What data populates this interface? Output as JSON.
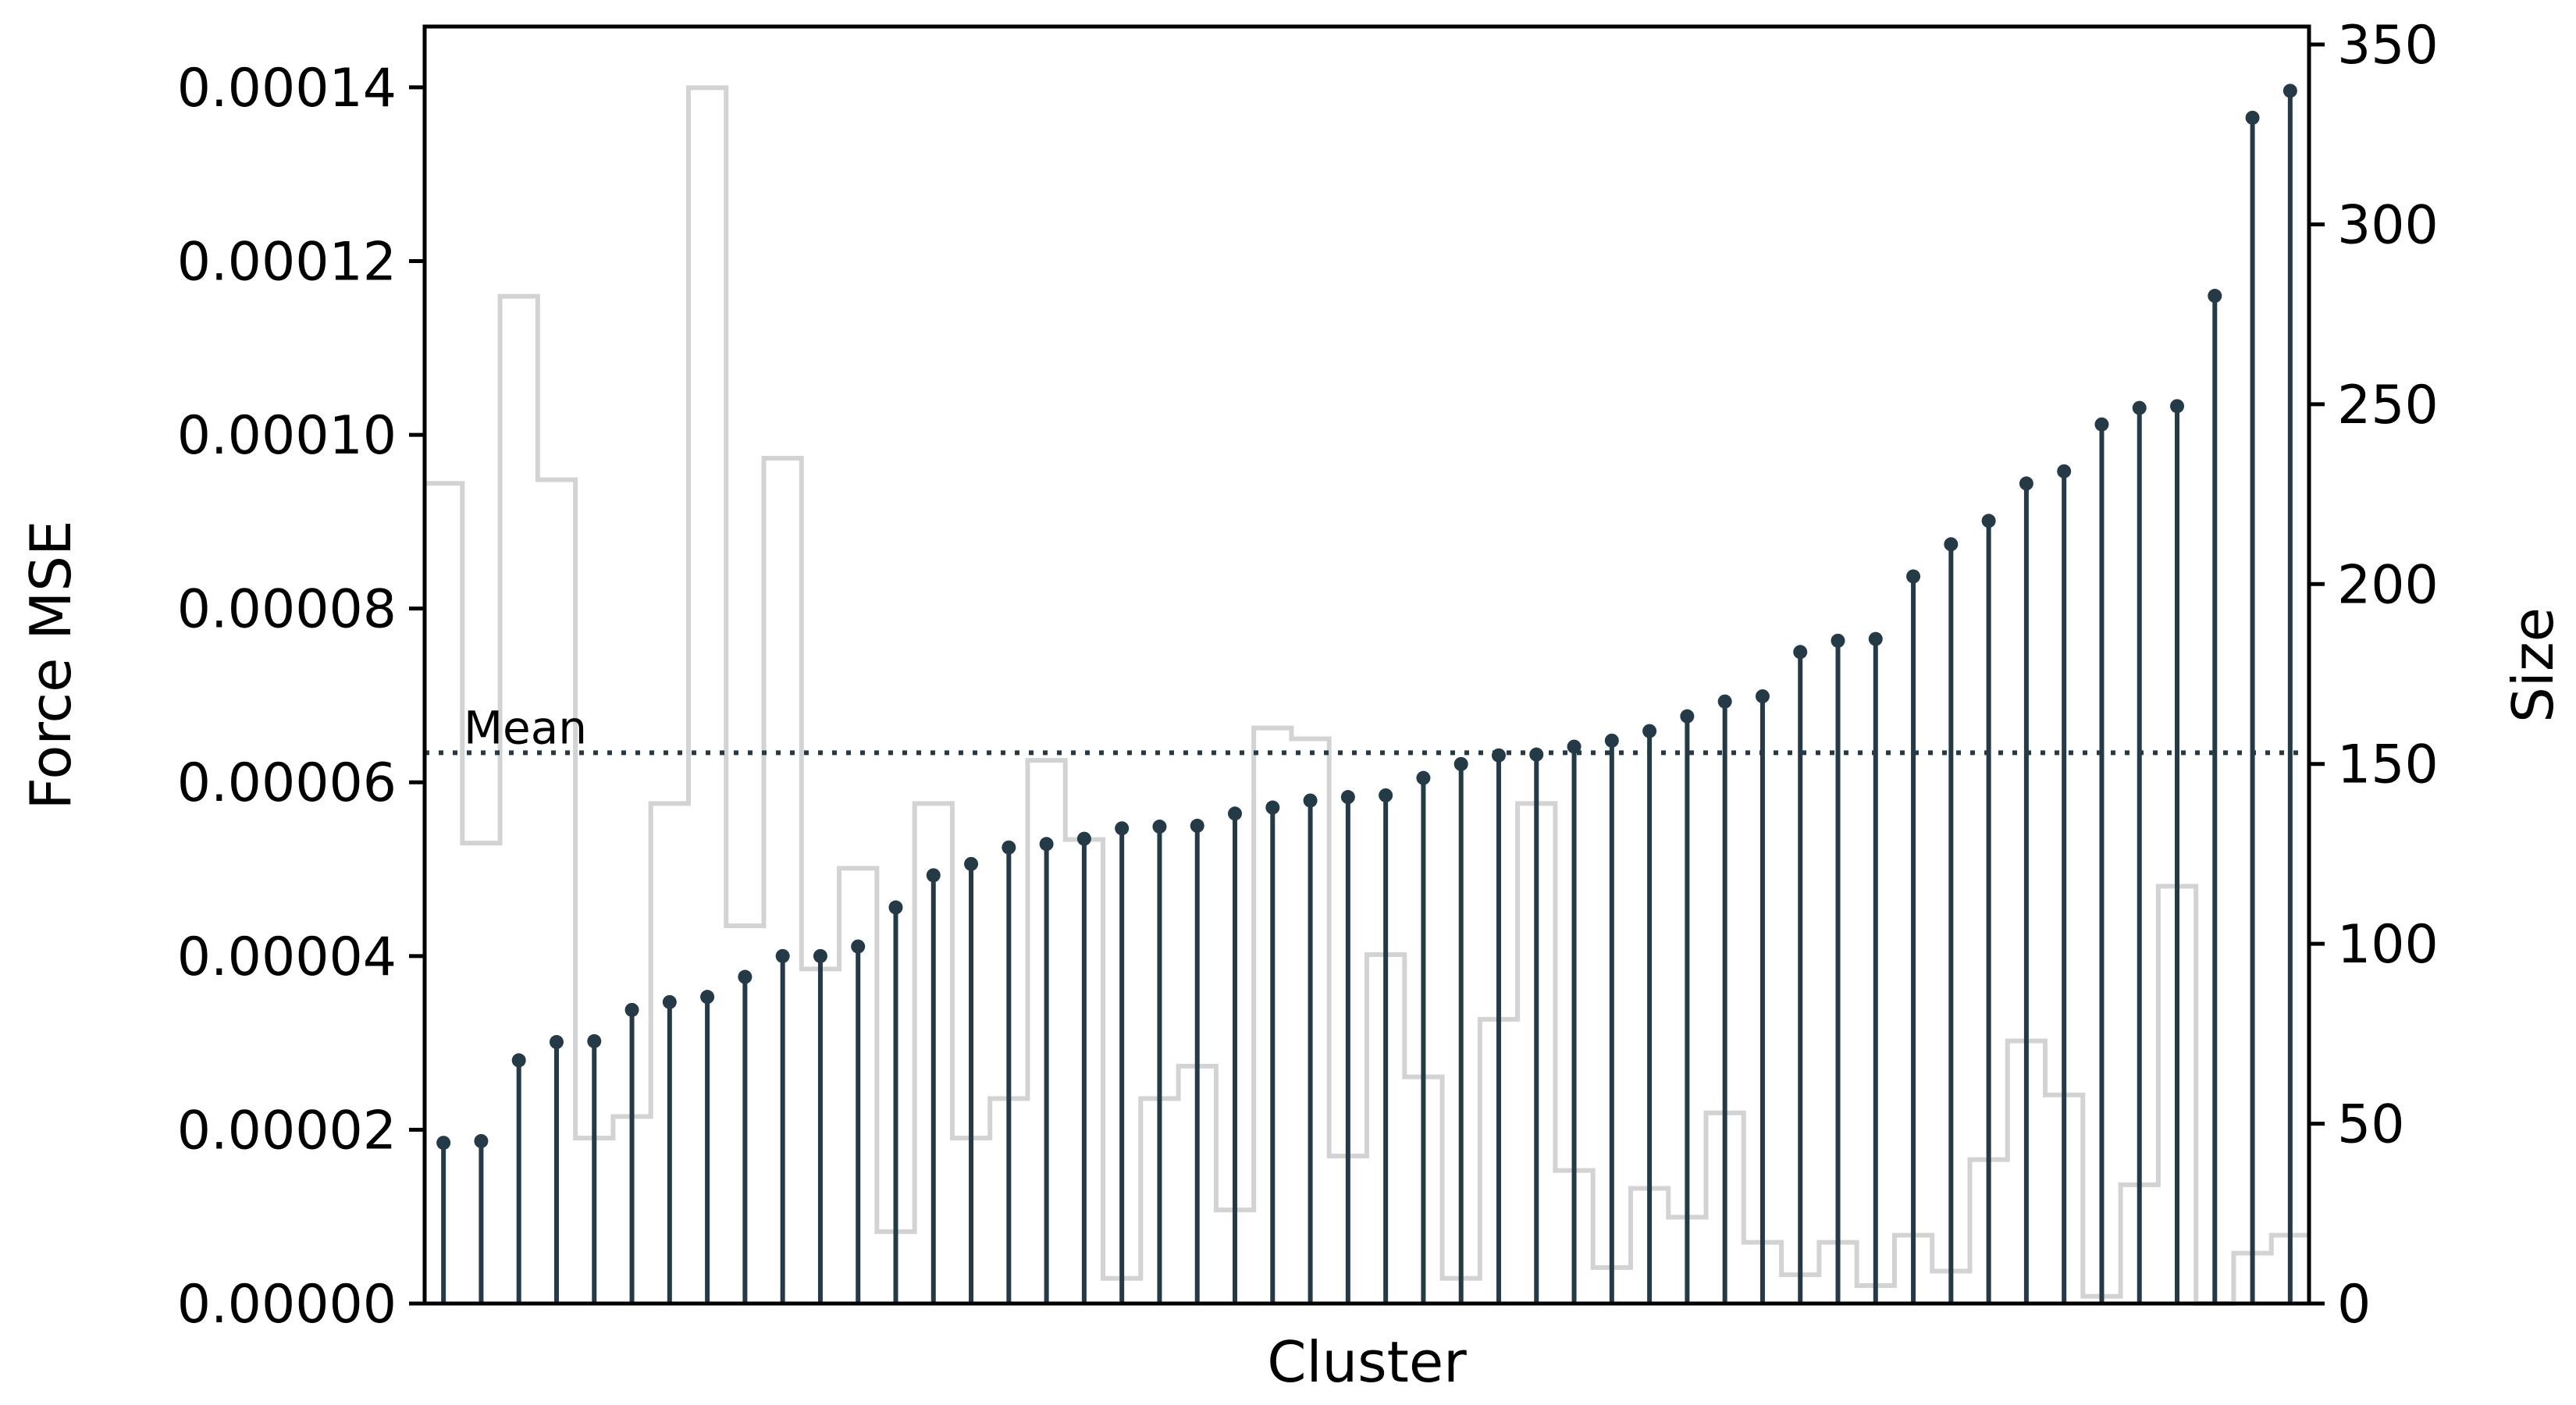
{
  "chart_data": {
    "type": "stem",
    "title": "",
    "xlabel": "Cluster",
    "ylabel": "Force MSE",
    "ylabel_right": "Size",
    "ylim": [
      0,
      0.000147
    ],
    "ylim_right": [
      0,
      355
    ],
    "yticks": [
      "0.00000",
      "0.00002",
      "0.00004",
      "0.00006",
      "0.00008",
      "0.00010",
      "0.00012",
      "0.00014"
    ],
    "yticks_right": [
      "0",
      "50",
      "100",
      "150",
      "200",
      "250",
      "300",
      "350"
    ],
    "grid": false,
    "colors": {
      "stem": "#243b47",
      "size": "#d3d3d3",
      "mean": "#243b47"
    },
    "mean": {
      "label": "Mean",
      "value": 6.34e-05
    },
    "series": [
      {
        "name": "Force MSE",
        "type": "stem",
        "values": [
          1.85e-05,
          1.87e-05,
          2.8e-05,
          3.01e-05,
          3.02e-05,
          3.38e-05,
          3.47e-05,
          3.53e-05,
          3.76e-05,
          4e-05,
          4e-05,
          4.11e-05,
          4.56e-05,
          4.93e-05,
          5.06e-05,
          5.25e-05,
          5.29e-05,
          5.35e-05,
          5.47e-05,
          5.49e-05,
          5.5e-05,
          5.64e-05,
          5.71e-05,
          5.79e-05,
          5.83e-05,
          5.85e-05,
          6.05e-05,
          6.21e-05,
          6.31e-05,
          6.32e-05,
          6.41e-05,
          6.48e-05,
          6.59e-05,
          6.76e-05,
          6.93e-05,
          6.99e-05,
          7.5e-05,
          7.63e-05,
          7.65e-05,
          8.37e-05,
          8.74e-05,
          9.01e-05,
          9.44e-05,
          9.58e-05,
          0.0001012,
          0.0001031,
          0.0001033,
          0.000116,
          0.0001365,
          0.0001396
        ]
      },
      {
        "name": "Size",
        "type": "step",
        "values": [
          228,
          128,
          280,
          229,
          46,
          52,
          139,
          338,
          105,
          235,
          93,
          121,
          20,
          139,
          46,
          57,
          151,
          129,
          7,
          57,
          66,
          26,
          160,
          157,
          41,
          97,
          63,
          7,
          79,
          139,
          37,
          10,
          32,
          24,
          53,
          17,
          8,
          17,
          5,
          19,
          9,
          40,
          73,
          58,
          2,
          33,
          116,
          0,
          14,
          19
        ]
      }
    ]
  }
}
